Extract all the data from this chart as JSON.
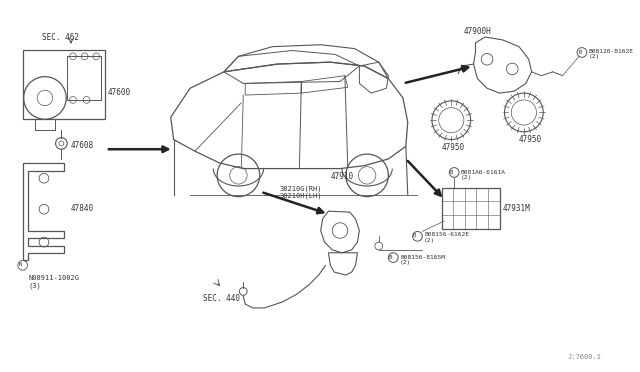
{
  "bg_color": "#ffffff",
  "line_color": "#555555",
  "text_color": "#333333",
  "fig_width": 6.4,
  "fig_height": 3.72,
  "watermark": "J:7600.1",
  "labels": {
    "sec462": "SEC. 462",
    "47600": "47600",
    "47608": "47608",
    "47840": "47840",
    "N08911_1002G": "N08911-1002G\n(3)",
    "47900H": "47900H",
    "B08120_8162E": "B08120-8162E\n(2)",
    "47950_left": "47950",
    "47950_right": "47950",
    "B081A6_6161A": "B081A6-6161A\n(2)",
    "47931M": "47931M",
    "B08156_6162E": "B08156-6162E\n(2)",
    "B08156_8165M": "B08156-8165M\n(2)",
    "47910": "47910",
    "38210G_RH": "38210G(RH)\n38210H(LH)",
    "sec440": "SEC. 440"
  }
}
